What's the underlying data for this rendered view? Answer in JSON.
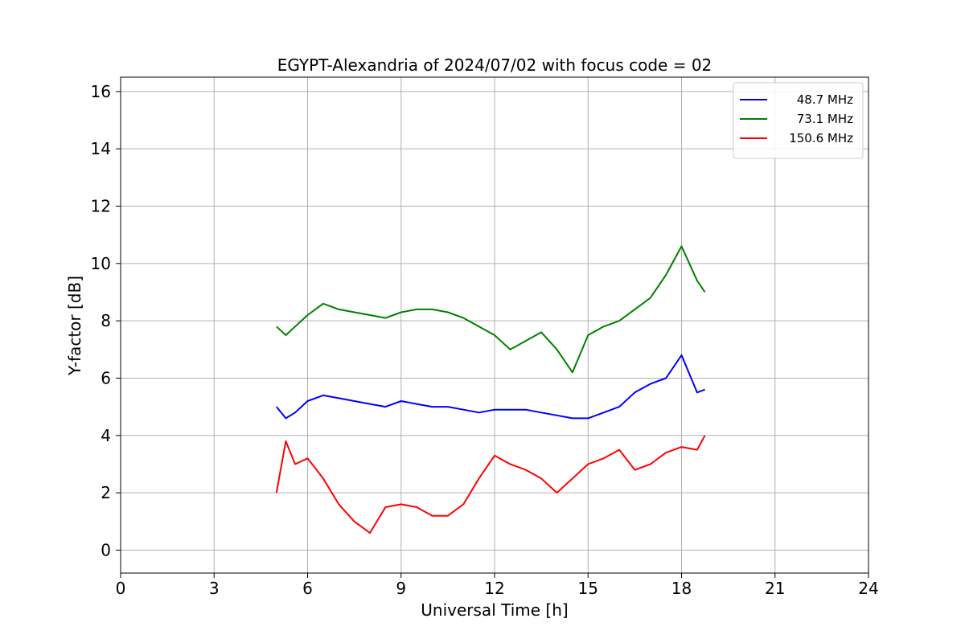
{
  "chart_data": {
    "type": "line",
    "title": "EGYPT-Alexandria of 2024/07/02 with focus code = 02",
    "xlabel": "Universal Time [h]",
    "ylabel": "Y-factor [dB]",
    "xlim": [
      0,
      24
    ],
    "ylim": [
      -0.8,
      16.5
    ],
    "xticks": [
      0,
      3,
      6,
      9,
      12,
      15,
      18,
      21,
      24
    ],
    "yticks": [
      0,
      2,
      4,
      6,
      8,
      10,
      12,
      14,
      16
    ],
    "grid": true,
    "legend_position": "top-right",
    "series": [
      {
        "name": "48.7 MHz",
        "color": "#0000ff",
        "x": [
          5.0,
          5.3,
          5.6,
          6.0,
          6.5,
          7.0,
          7.5,
          8.0,
          8.5,
          9.0,
          9.5,
          10.0,
          10.5,
          11.0,
          11.5,
          12.0,
          12.5,
          13.0,
          13.5,
          14.0,
          14.5,
          15.0,
          15.5,
          16.0,
          16.5,
          17.0,
          17.5,
          18.0,
          18.5,
          18.75
        ],
        "values": [
          5.0,
          4.6,
          4.8,
          5.2,
          5.4,
          5.3,
          5.2,
          5.1,
          5.0,
          5.2,
          5.1,
          5.0,
          5.0,
          4.9,
          4.8,
          4.9,
          4.9,
          4.9,
          4.8,
          4.7,
          4.6,
          4.6,
          4.8,
          5.0,
          5.5,
          5.8,
          6.0,
          6.8,
          5.5,
          5.6
        ]
      },
      {
        "name": "73.1 MHz",
        "color": "#008000",
        "x": [
          5.0,
          5.3,
          5.6,
          6.0,
          6.5,
          7.0,
          7.5,
          8.0,
          8.5,
          9.0,
          9.5,
          10.0,
          10.5,
          11.0,
          11.5,
          12.0,
          12.5,
          13.0,
          13.5,
          14.0,
          14.5,
          15.0,
          15.5,
          16.0,
          16.5,
          17.0,
          17.5,
          18.0,
          18.5,
          18.75
        ],
        "values": [
          7.8,
          7.5,
          7.8,
          8.2,
          8.6,
          8.4,
          8.3,
          8.2,
          8.1,
          8.3,
          8.4,
          8.4,
          8.3,
          8.1,
          7.8,
          7.5,
          7.0,
          7.3,
          7.6,
          7.0,
          6.2,
          7.5,
          7.8,
          8.0,
          8.4,
          8.8,
          9.6,
          10.6,
          9.4,
          9.0
        ]
      },
      {
        "name": "150.6 MHz",
        "color": "#ff0000",
        "x": [
          5.0,
          5.3,
          5.6,
          6.0,
          6.5,
          7.0,
          7.5,
          8.0,
          8.5,
          9.0,
          9.5,
          10.0,
          10.5,
          11.0,
          11.5,
          12.0,
          12.5,
          13.0,
          13.5,
          14.0,
          14.5,
          15.0,
          15.5,
          16.0,
          16.5,
          17.0,
          17.5,
          18.0,
          18.5,
          18.75
        ],
        "values": [
          2.0,
          3.8,
          3.0,
          3.2,
          2.5,
          1.6,
          1.0,
          0.6,
          1.5,
          1.6,
          1.5,
          1.2,
          1.2,
          1.6,
          2.5,
          3.3,
          3.0,
          2.8,
          2.5,
          2.0,
          2.5,
          3.0,
          3.2,
          3.5,
          2.8,
          3.0,
          3.4,
          3.6,
          3.5,
          4.0
        ]
      }
    ]
  }
}
